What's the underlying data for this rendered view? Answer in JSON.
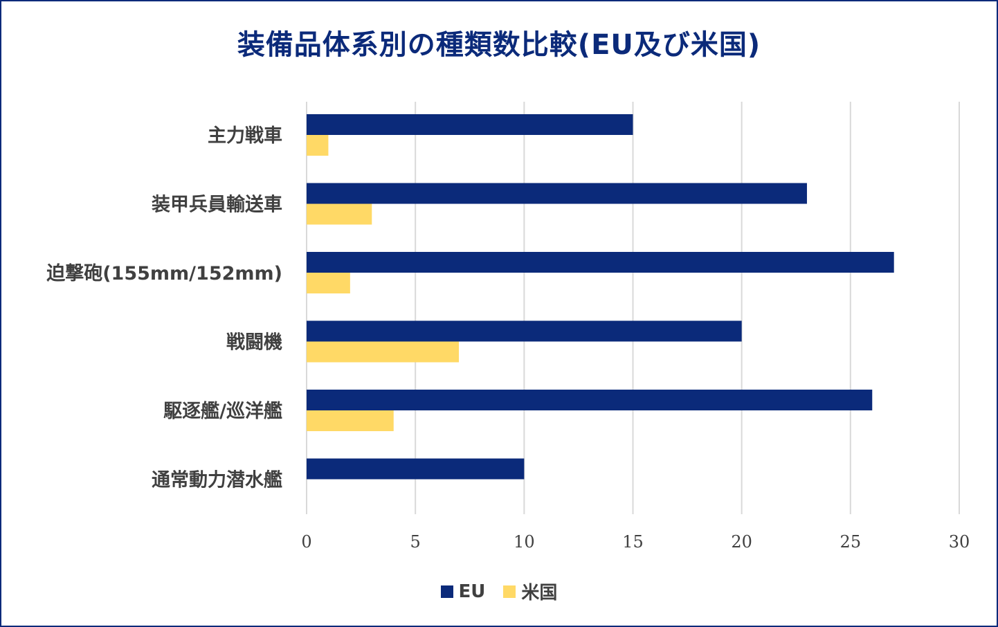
{
  "chart_data": {
    "type": "bar",
    "orientation": "horizontal",
    "title": "装備品体系別の種類数比較(EU及び米国)",
    "categories": [
      "主力戦車",
      "装甲兵員輸送車",
      "迫撃砲(155mm/152mm)",
      "戦闘機",
      "駆逐艦/巡洋艦",
      "通常動力潜水艦"
    ],
    "series": [
      {
        "name": "EU",
        "color": "#0b2a7a",
        "values": [
          15,
          23,
          27,
          20,
          26,
          10
        ]
      },
      {
        "name": "米国",
        "color": "#ffd966",
        "values": [
          1,
          3,
          2,
          7,
          4,
          0
        ]
      }
    ],
    "xlim": [
      0,
      30
    ],
    "xticks": [
      "0",
      "5",
      "10",
      "15",
      "20",
      "25",
      "30"
    ],
    "grid": true,
    "legend_position": "bottom"
  }
}
